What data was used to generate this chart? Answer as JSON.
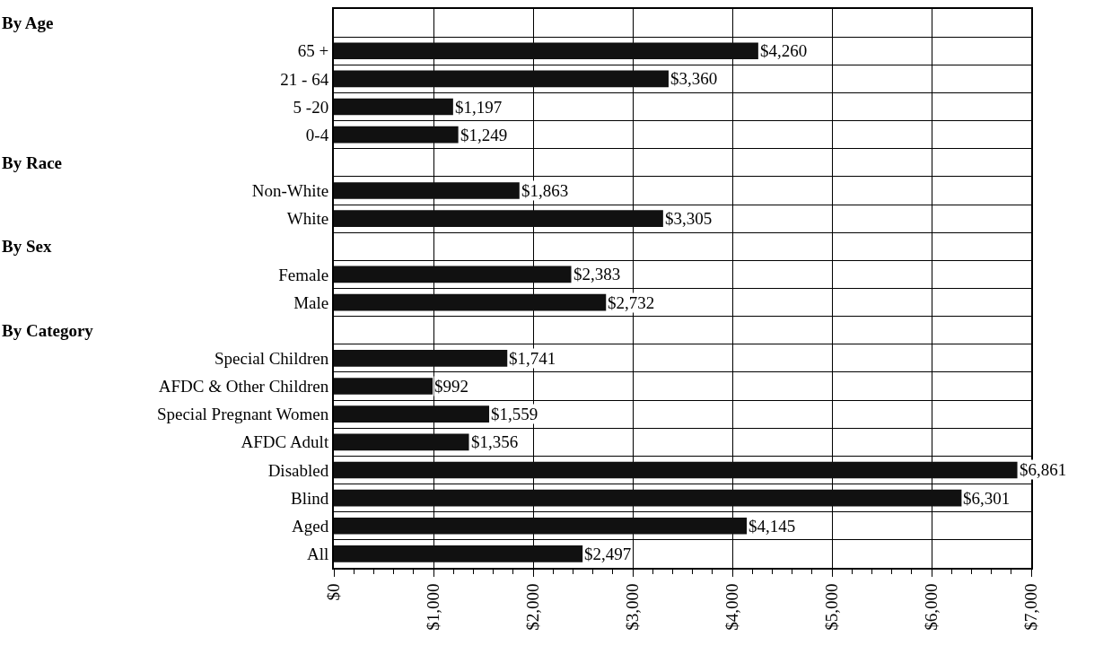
{
  "chart_data": {
    "type": "bar",
    "orientation": "horizontal",
    "annotations": [
      "By Age",
      "By Race",
      "By Sex",
      "By Category"
    ],
    "categories": [
      null,
      "65 +",
      "21 - 64",
      "5 -20",
      "0-4",
      null,
      "Non-White",
      "White",
      null,
      "Female",
      "Male",
      null,
      "Special Children",
      "AFDC & Other Children",
      "Special Pregnant Women",
      "AFDC Adult",
      "Disabled",
      "Blind",
      "Aged",
      "All"
    ],
    "values": [
      null,
      4260,
      3360,
      1197,
      1249,
      null,
      1863,
      3305,
      null,
      2383,
      2732,
      null,
      1741,
      992,
      1559,
      1356,
      6861,
      6301,
      4145,
      2497
    ],
    "value_labels": [
      null,
      "$4,260",
      "$3,360",
      "$1,197",
      "$1,249",
      null,
      "$1,863",
      "$3,305",
      null,
      "$2,383",
      "$2,732",
      null,
      "$1,741",
      "$992",
      "$1,559",
      "$1,356",
      "$6,861",
      "$6,301",
      "$4,145",
      "$2,497"
    ],
    "color": "#111111",
    "xlim": [
      0,
      7000
    ],
    "xticks": [
      {
        "value": 0,
        "label": "$0"
      },
      {
        "value": 1000,
        "label": "$1,000"
      },
      {
        "value": 2000,
        "label": "$2,000"
      },
      {
        "value": 3000,
        "label": "$3,000"
      },
      {
        "value": 4000,
        "label": "$4,000"
      },
      {
        "value": 5000,
        "label": "$5,000"
      },
      {
        "value": 6000,
        "label": "$6,000"
      },
      {
        "value": 7000,
        "label": "$7,000"
      }
    ],
    "grid": true,
    "legend": false
  }
}
